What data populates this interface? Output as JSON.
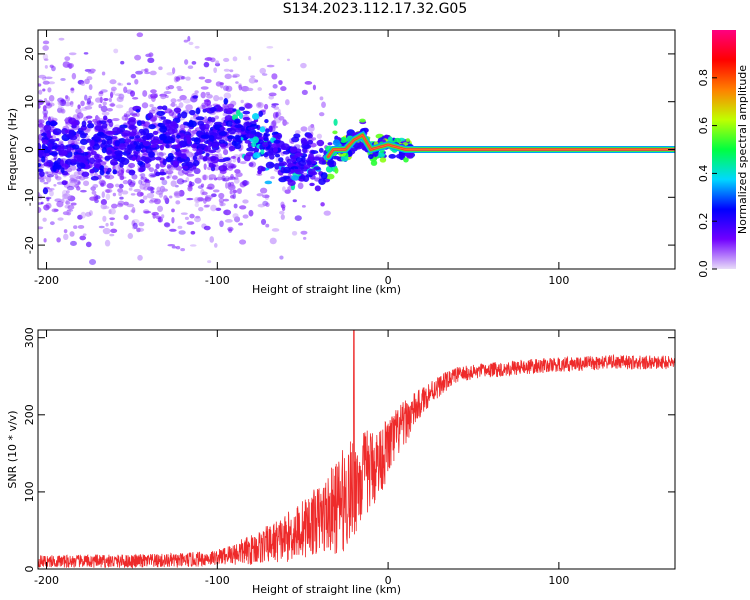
{
  "title": "S134.2023.112.17.32.G05",
  "chart_data": [
    {
      "type": "heatmap",
      "xlabel": "Height of straight line (km)",
      "ylabel": "Frequency (Hz)",
      "xlim": [
        -205,
        168
      ],
      "ylim": [
        -25,
        25
      ],
      "xticks": [
        -200,
        -100,
        0,
        100
      ],
      "yticks": [
        -20,
        -10,
        0,
        10,
        20
      ],
      "colorbar": {
        "label": "Normalized spectral amplitude",
        "range": [
          0,
          1
        ],
        "ticks": [
          "0.0",
          "0.2",
          "0.4",
          "0.6",
          "0.8"
        ],
        "colors": [
          "#e8dcf8",
          "#7000ff",
          "#0000ff",
          "#00d8ff",
          "#00ff40",
          "#c0ff00",
          "#ff8000",
          "#ff0000",
          "#ff0080"
        ]
      },
      "ridge": {
        "points": [
          [
            -205,
            0
          ],
          [
            -150,
            0.5
          ],
          [
            -100,
            3
          ],
          [
            -90,
            5
          ],
          [
            -80,
            3
          ],
          [
            -60,
            -1
          ],
          [
            -45,
            -3
          ],
          [
            -38,
            -3
          ],
          [
            -32,
            0
          ],
          [
            -25,
            0
          ],
          [
            -20,
            2
          ],
          [
            -15,
            3
          ],
          [
            -10,
            0
          ],
          [
            0,
            1
          ],
          [
            10,
            0
          ],
          [
            168,
            0
          ]
        ]
      }
    },
    {
      "type": "line",
      "xlabel": "Height of straight line (km)",
      "ylabel": "SNR (10 * v/v)",
      "xlim": [
        -205,
        168
      ],
      "ylim": [
        0,
        310
      ],
      "xticks": [
        -200,
        -100,
        0,
        100
      ],
      "yticks": [
        0,
        100,
        200,
        300
      ],
      "series": [
        {
          "color": "#ee2a2a",
          "trend": [
            [
              -205,
              10
            ],
            [
              -150,
              10
            ],
            [
              -120,
              11
            ],
            [
              -100,
              15
            ],
            [
              -80,
              25
            ],
            [
              -60,
              40
            ],
            [
              -40,
              65
            ],
            [
              -30,
              80
            ],
            [
              -22,
              100
            ],
            [
              -15,
              120
            ],
            [
              -5,
              140
            ],
            [
              5,
              175
            ],
            [
              15,
              205
            ],
            [
              25,
              230
            ],
            [
              40,
              252
            ],
            [
              60,
              258
            ],
            [
              80,
              262
            ],
            [
              100,
              265
            ],
            [
              130,
              268
            ],
            [
              168,
              268
            ]
          ],
          "noise": [
            [
              -205,
              8
            ],
            [
              -100,
              10
            ],
            [
              -70,
              25
            ],
            [
              -40,
              45
            ],
            [
              -25,
              70
            ],
            [
              -15,
              60
            ],
            [
              0,
              40
            ],
            [
              20,
              18
            ],
            [
              40,
              10
            ],
            [
              168,
              9
            ]
          ],
          "spike": {
            "x": -20,
            "y": 310
          }
        }
      ]
    }
  ]
}
